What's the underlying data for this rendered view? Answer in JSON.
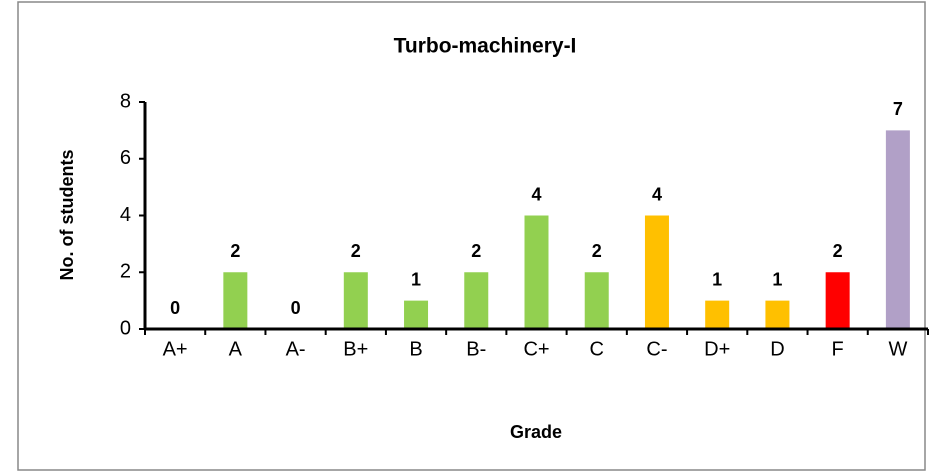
{
  "chart_data": {
    "type": "bar",
    "title": "Turbo-machinery-I",
    "x_label": "Grade",
    "y_label": "No. of students",
    "categories": [
      "A+",
      "A",
      "A-",
      "B+",
      "B",
      "B-",
      "C+",
      "C",
      "C-",
      "D+",
      "D",
      "F",
      "W"
    ],
    "values": [
      0,
      2,
      0,
      2,
      1,
      2,
      4,
      2,
      4,
      1,
      1,
      2,
      7
    ],
    "colors": [
      "#92d050",
      "#92d050",
      "#92d050",
      "#92d050",
      "#92d050",
      "#92d050",
      "#92d050",
      "#92d050",
      "#ffc000",
      "#ffc000",
      "#ffc000",
      "#ff0000",
      "#b1a0c7"
    ],
    "ylim": [
      0,
      8
    ],
    "yticks": [
      0,
      2,
      4,
      6,
      8
    ],
    "grid": false
  }
}
